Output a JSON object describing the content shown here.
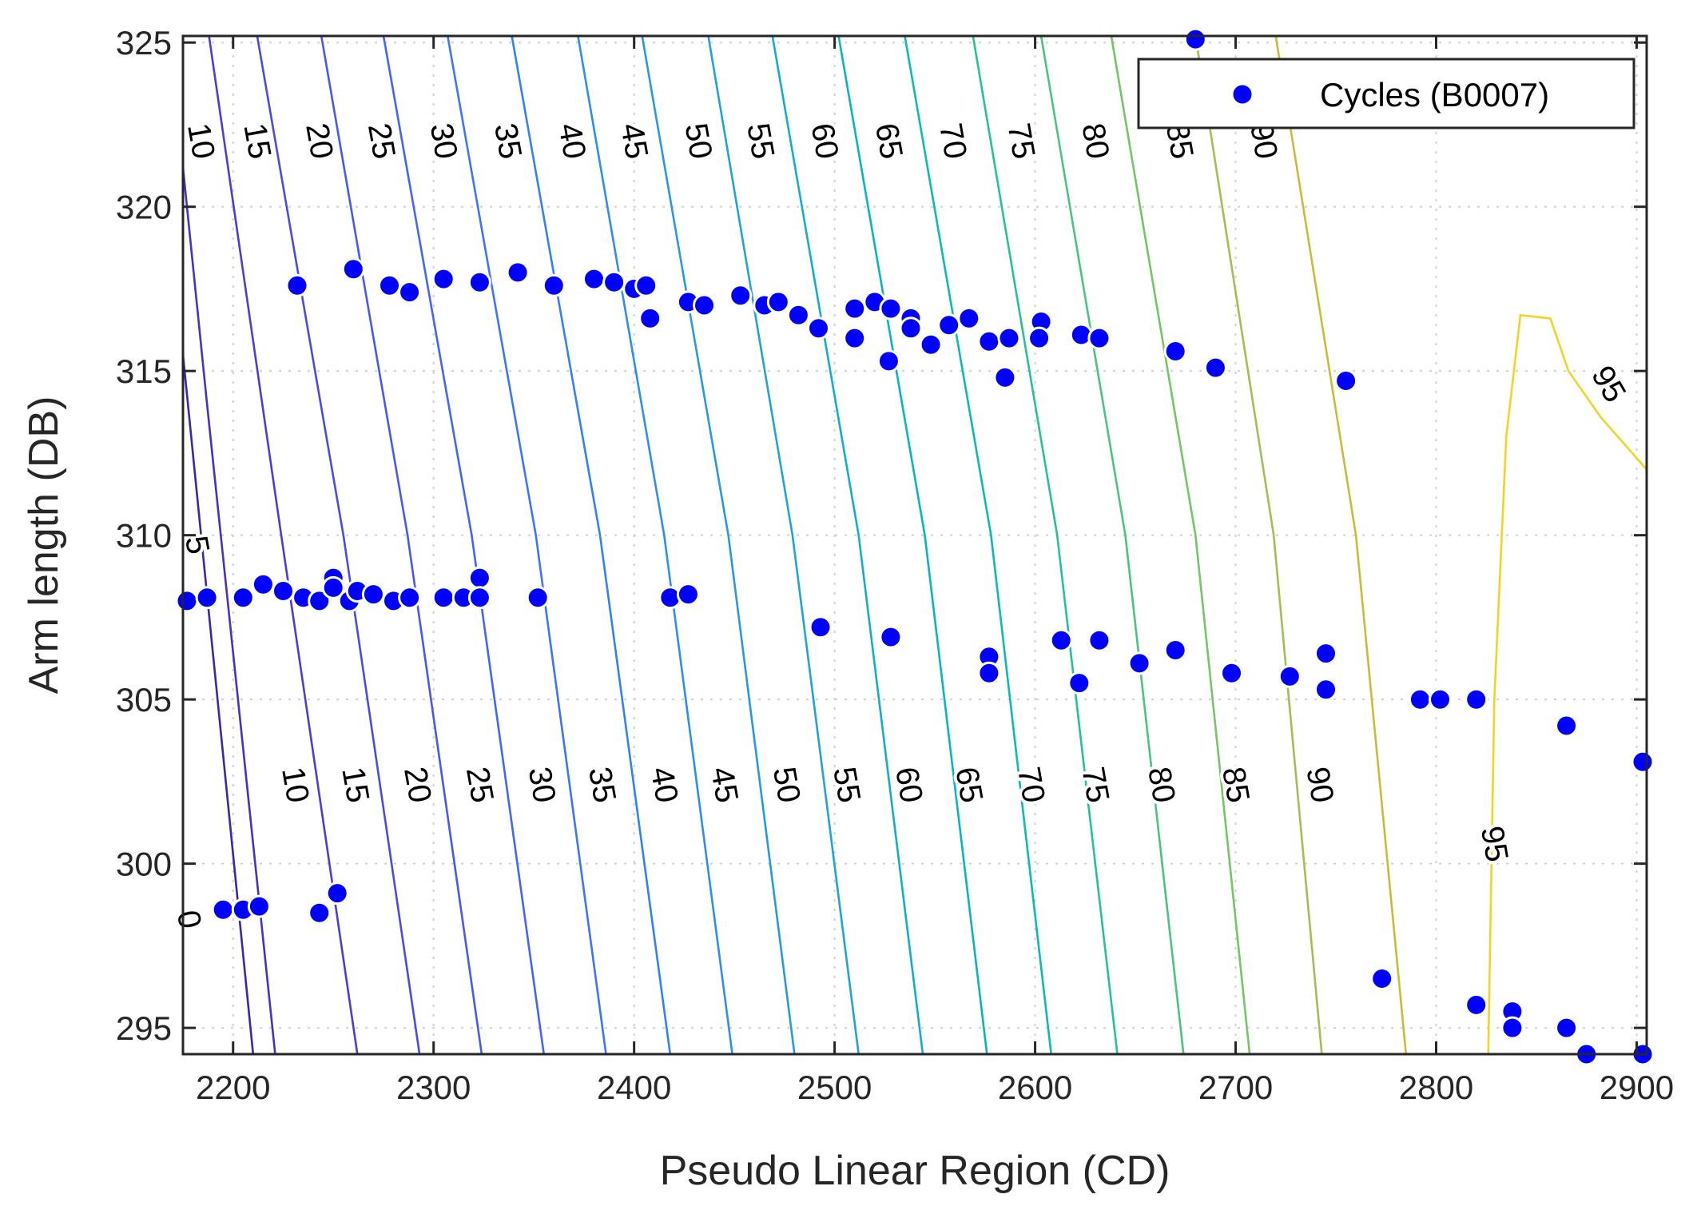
{
  "chart_data": {
    "type": "scatter",
    "subtype": "scatter with contour overlay",
    "xlabel": "Pseudo Linear Region (CD)",
    "ylabel": "Arm length (DB)",
    "xlim": [
      2175,
      2905
    ],
    "ylim": [
      294.2,
      325.2
    ],
    "x_ticks": [
      2200,
      2300,
      2400,
      2500,
      2600,
      2700,
      2800,
      2900
    ],
    "y_ticks": [
      295,
      300,
      305,
      310,
      315,
      320,
      325
    ],
    "grid": true,
    "legend": {
      "location": "top-right",
      "entries": [
        "Cycles (B0007)"
      ]
    },
    "colors": {
      "marker": "#0000ff",
      "axis": "#262626",
      "grid": "#d0d0d0"
    },
    "series": [
      {
        "name": "Cycles (B0007)",
        "marker": "filled-circle",
        "points": [
          [
            2680,
            325.1
          ],
          [
            2232,
            317.6
          ],
          [
            2260,
            318.1
          ],
          [
            2278,
            317.6
          ],
          [
            2288,
            317.4
          ],
          [
            2305,
            317.8
          ],
          [
            2323,
            317.7
          ],
          [
            2342,
            318.0
          ],
          [
            2360,
            317.6
          ],
          [
            2380,
            317.8
          ],
          [
            2390,
            317.7
          ],
          [
            2400,
            317.5
          ],
          [
            2406,
            317.6
          ],
          [
            2408,
            316.6
          ],
          [
            2427,
            317.1
          ],
          [
            2435,
            317.0
          ],
          [
            2453,
            317.3
          ],
          [
            2465,
            317.0
          ],
          [
            2472,
            317.1
          ],
          [
            2482,
            316.7
          ],
          [
            2492,
            316.3
          ],
          [
            2510,
            316.9
          ],
          [
            2520,
            317.1
          ],
          [
            2528,
            316.9
          ],
          [
            2538,
            316.6
          ],
          [
            2538,
            316.3
          ],
          [
            2510,
            316.0
          ],
          [
            2527,
            315.3
          ],
          [
            2548,
            315.8
          ],
          [
            2557,
            316.4
          ],
          [
            2567,
            316.6
          ],
          [
            2577,
            315.9
          ],
          [
            2587,
            316.0
          ],
          [
            2603,
            316.5
          ],
          [
            2585,
            314.8
          ],
          [
            2602,
            316.0
          ],
          [
            2623,
            316.1
          ],
          [
            2632,
            316.0
          ],
          [
            2670,
            315.6
          ],
          [
            2690,
            315.1
          ],
          [
            2755,
            314.7
          ],
          [
            2177,
            308.0
          ],
          [
            2187,
            308.1
          ],
          [
            2205,
            308.1
          ],
          [
            2215,
            308.5
          ],
          [
            2225,
            308.3
          ],
          [
            2235,
            308.1
          ],
          [
            2243,
            308.0
          ],
          [
            2250,
            308.7
          ],
          [
            2250,
            308.4
          ],
          [
            2258,
            308.0
          ],
          [
            2262,
            308.3
          ],
          [
            2270,
            308.2
          ],
          [
            2280,
            308.0
          ],
          [
            2288,
            308.1
          ],
          [
            2305,
            308.1
          ],
          [
            2315,
            308.1
          ],
          [
            2323,
            308.7
          ],
          [
            2323,
            308.1
          ],
          [
            2352,
            308.1
          ],
          [
            2418,
            308.1
          ],
          [
            2427,
            308.2
          ],
          [
            2493,
            307.2
          ],
          [
            2528,
            306.9
          ],
          [
            2577,
            306.3
          ],
          [
            2577,
            305.8
          ],
          [
            2613,
            306.8
          ],
          [
            2622,
            305.5
          ],
          [
            2632,
            306.8
          ],
          [
            2652,
            306.1
          ],
          [
            2670,
            306.5
          ],
          [
            2698,
            305.8
          ],
          [
            2727,
            305.7
          ],
          [
            2745,
            306.4
          ],
          [
            2745,
            305.3
          ],
          [
            2792,
            305.0
          ],
          [
            2802,
            305.0
          ],
          [
            2820,
            305.0
          ],
          [
            2865,
            304.2
          ],
          [
            2903,
            303.1
          ],
          [
            2195,
            298.6
          ],
          [
            2205,
            298.6
          ],
          [
            2213,
            298.7
          ],
          [
            2243,
            298.5
          ],
          [
            2252,
            299.1
          ],
          [
            2773,
            296.5
          ],
          [
            2820,
            295.7
          ],
          [
            2838,
            295.5
          ],
          [
            2838,
            295.0
          ],
          [
            2865,
            295.0
          ],
          [
            2875,
            294.2
          ],
          [
            2903,
            294.2
          ]
        ]
      }
    ],
    "contours": {
      "levels": [
        0,
        5,
        10,
        15,
        20,
        25,
        30,
        35,
        40,
        45,
        50,
        55,
        60,
        65,
        70,
        75,
        80,
        85,
        90,
        95
      ],
      "colors": [
        "#3e26a8",
        "#4433c4",
        "#473fd6",
        "#4a4be6",
        "#4858f0",
        "#4266fa",
        "#3c74fd",
        "#3182f8",
        "#2c8ff0",
        "#2599e6",
        "#1ea3dc",
        "#13acd0",
        "#06b4c2",
        "#0bbab1",
        "#25c09c",
        "#4ac383",
        "#75c468",
        "#a0c04f",
        "#c8bc38",
        "#f0d522",
        "#f9fb0e"
      ],
      "lines": [
        {
          "level": 0,
          "points": [
            [
              2175,
              315.5
            ],
            [
              2210,
              294.2
            ]
          ]
        },
        {
          "level": 5,
          "points": [
            [
              2175,
              321.2
            ],
            [
              2187,
              314.0
            ],
            [
              2221,
              294.2
            ]
          ]
        },
        {
          "level": 10,
          "points": [
            [
              2188,
              325.2
            ],
            [
              2224,
              310.0
            ],
            [
              2262,
              294.2
            ]
          ]
        },
        {
          "level": 15,
          "points": [
            [
              2212,
              325.2
            ],
            [
              2255,
              310.0
            ],
            [
              2293,
              294.2
            ]
          ]
        },
        {
          "level": 20,
          "points": [
            [
              2244,
              325.2
            ],
            [
              2287,
              310.0
            ],
            [
              2324,
              294.2
            ]
          ]
        },
        {
          "level": 25,
          "points": [
            [
              2275,
              325.2
            ],
            [
              2319,
              310.0
            ],
            [
              2355,
              294.2
            ]
          ]
        },
        {
          "level": 30,
          "points": [
            [
              2307,
              325.2
            ],
            [
              2351,
              310.0
            ],
            [
              2386,
              294.2
            ]
          ]
        },
        {
          "level": 35,
          "points": [
            [
              2339,
              325.2
            ],
            [
              2383,
              310.0
            ],
            [
              2418,
              294.2
            ]
          ]
        },
        {
          "level": 40,
          "points": [
            [
              2372,
              325.2
            ],
            [
              2415,
              310.0
            ],
            [
              2449,
              294.2
            ]
          ]
        },
        {
          "level": 45,
          "points": [
            [
              2404,
              325.2
            ],
            [
              2447,
              310.0
            ],
            [
              2480,
              294.2
            ]
          ]
        },
        {
          "level": 50,
          "points": [
            [
              2437,
              325.2
            ],
            [
              2479,
              310.0
            ],
            [
              2512,
              294.2
            ]
          ]
        },
        {
          "level": 55,
          "points": [
            [
              2469,
              325.2
            ],
            [
              2512,
              310.0
            ],
            [
              2544,
              294.2
            ]
          ]
        },
        {
          "level": 60,
          "points": [
            [
              2502,
              325.2
            ],
            [
              2545,
              310.0
            ],
            [
              2576,
              294.2
            ]
          ]
        },
        {
          "level": 65,
          "points": [
            [
              2535,
              325.2
            ],
            [
              2578,
              310.0
            ],
            [
              2608,
              294.2
            ]
          ]
        },
        {
          "level": 70,
          "points": [
            [
              2569,
              325.2
            ],
            [
              2611,
              310.0
            ],
            [
              2641,
              294.2
            ]
          ]
        },
        {
          "level": 75,
          "points": [
            [
              2603,
              325.2
            ],
            [
              2645,
              310.0
            ],
            [
              2674,
              294.2
            ]
          ]
        },
        {
          "level": 80,
          "points": [
            [
              2638,
              325.2
            ],
            [
              2680,
              310.0
            ],
            [
              2707,
              294.2
            ]
          ]
        },
        {
          "level": 85,
          "points": [
            [
              2680,
              325.2
            ],
            [
              2719,
              310.0
            ],
            [
              2743,
              294.2
            ]
          ]
        },
        {
          "level": 90,
          "points": [
            [
              2720,
              325.2
            ],
            [
              2760,
              310.0
            ],
            [
              2785,
              294.2
            ]
          ]
        },
        {
          "level": 95,
          "points": [
            [
              2826,
              294.2
            ],
            [
              2829,
              305.0
            ],
            [
              2835,
              313.0
            ],
            [
              2842,
              316.7
            ],
            [
              2857,
              316.6
            ],
            [
              2866,
              315.0
            ],
            [
              2882,
              313.6
            ],
            [
              2905,
              312.0
            ]
          ]
        }
      ],
      "labels": [
        {
          "text": "0",
          "at": [
            2178,
            298.3
          ]
        },
        {
          "text": "5",
          "at": [
            2182,
            309.7
          ]
        },
        {
          "text": "10",
          "at": [
            2184,
            322.0
          ]
        },
        {
          "text": "15",
          "at": [
            2212,
            322.0
          ]
        },
        {
          "text": "20",
          "at": [
            2243,
            322.0
          ]
        },
        {
          "text": "25",
          "at": [
            2274,
            322.0
          ]
        },
        {
          "text": "30",
          "at": [
            2305,
            322.0
          ]
        },
        {
          "text": "35",
          "at": [
            2337,
            322.0
          ]
        },
        {
          "text": "40",
          "at": [
            2369,
            322.0
          ]
        },
        {
          "text": "45",
          "at": [
            2400,
            322.0
          ]
        },
        {
          "text": "50",
          "at": [
            2432,
            322.0
          ]
        },
        {
          "text": "55",
          "at": [
            2463,
            322.0
          ]
        },
        {
          "text": "60",
          "at": [
            2495,
            322.0
          ]
        },
        {
          "text": "65",
          "at": [
            2527,
            322.0
          ]
        },
        {
          "text": "70",
          "at": [
            2559,
            322.0
          ]
        },
        {
          "text": "75",
          "at": [
            2593,
            322.0
          ]
        },
        {
          "text": "80",
          "at": [
            2630,
            322.0
          ]
        },
        {
          "text": "85",
          "at": [
            2672,
            322.0
          ]
        },
        {
          "text": "90",
          "at": [
            2714,
            322.0
          ]
        },
        {
          "text": "95",
          "at": [
            2886,
            314.6
          ]
        },
        {
          "text": "10",
          "at": [
            2231,
            302.4
          ]
        },
        {
          "text": "15",
          "at": [
            2261,
            302.4
          ]
        },
        {
          "text": "20",
          "at": [
            2292,
            302.4
          ]
        },
        {
          "text": "25",
          "at": [
            2323,
            302.4
          ]
        },
        {
          "text": "30",
          "at": [
            2354,
            302.4
          ]
        },
        {
          "text": "35",
          "at": [
            2384,
            302.4
          ]
        },
        {
          "text": "40",
          "at": [
            2415,
            302.4
          ]
        },
        {
          "text": "45",
          "at": [
            2445,
            302.4
          ]
        },
        {
          "text": "50",
          "at": [
            2476,
            302.4
          ]
        },
        {
          "text": "55",
          "at": [
            2506,
            302.4
          ]
        },
        {
          "text": "60",
          "at": [
            2537,
            302.4
          ]
        },
        {
          "text": "65",
          "at": [
            2567,
            302.4
          ]
        },
        {
          "text": "70",
          "at": [
            2598,
            302.4
          ]
        },
        {
          "text": "75",
          "at": [
            2630,
            302.4
          ]
        },
        {
          "text": "80",
          "at": [
            2663,
            302.4
          ]
        },
        {
          "text": "85",
          "at": [
            2700,
            302.4
          ]
        },
        {
          "text": "90",
          "at": [
            2742,
            302.4
          ]
        },
        {
          "text": "95",
          "at": [
            2829,
            300.6
          ]
        }
      ]
    }
  }
}
